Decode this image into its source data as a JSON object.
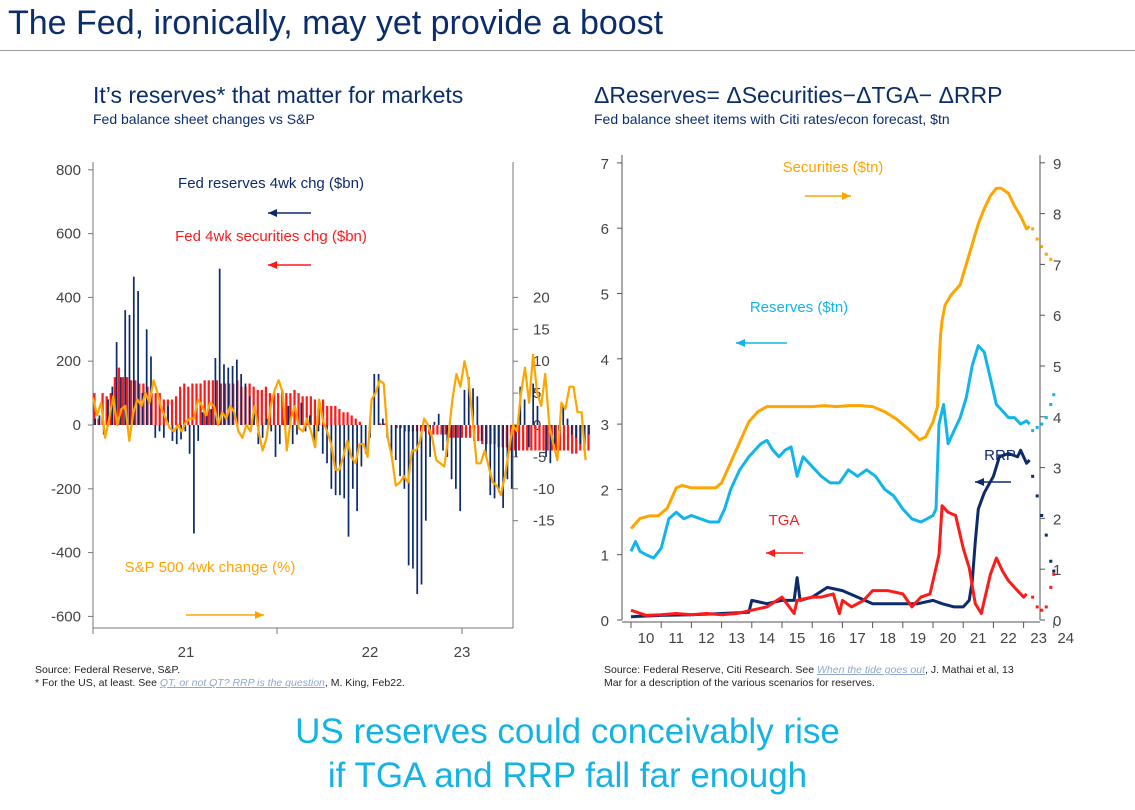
{
  "page": {
    "title": "The Fed, ironically, may yet provide a boost",
    "bottom_line1": "US reserves could conceivably rise",
    "bottom_line2": "if TGA and RRP fall far enough"
  },
  "left": {
    "title": "It’s reserves* that matter for markets",
    "subtitle": "Fed balance sheet changes vs S&P",
    "source_line1": "Source: Federal Reserve, S&P.",
    "source_pre": "* For the US, at least. See ",
    "source_link": "QT, or not QT? RRP is the question",
    "source_post": ", M. King, Feb22."
  },
  "right": {
    "title": "ΔReserves= ΔSecurities−ΔTGA− ΔRRP",
    "subtitle": "Fed balance sheet items with Citi rates/econ forecast, $tn",
    "source_pre": "Source: Federal Reserve, Citi Research. See ",
    "source_link": "When the tide goes out",
    "source_post": ", J. Mathai et al, 13",
    "source_line2": "Mar for a description of the various scenarios for reserves."
  },
  "colors": {
    "navy": "#0d2a6b",
    "red": "#ff1a1a",
    "orange": "#ffa500",
    "cyan": "#12b5ea",
    "title": "#0b2e6b"
  },
  "chart_data": [
    {
      "type": "bar",
      "title": "It’s reserves* that matter for markets",
      "subtitle": "Fed balance sheet changes vs S&P",
      "x_ticks": [
        "21",
        "22",
        "23"
      ],
      "y_left": {
        "min": -600,
        "max": 800,
        "ticks": [
          "800",
          "600",
          "400",
          "200",
          "0",
          "-200",
          "-400",
          "-600"
        ],
        "values": [
          800,
          600,
          400,
          200,
          0,
          -200,
          -400,
          -600
        ]
      },
      "y_right": {
        "min": -15,
        "max": 20,
        "ticks": [
          "20",
          "15",
          "10",
          "5",
          "0",
          "-5",
          "-10",
          "-15"
        ],
        "values": [
          20,
          15,
          10,
          5,
          0,
          -5,
          -10,
          -15
        ]
      },
      "x_range": [
        2020.5,
        2023.25
      ],
      "legend": [
        {
          "name": "Fed reserves 4wk chg ($bn)",
          "axis": "left",
          "color": "#0d2a6b"
        },
        {
          "name": "Fed 4wk securities chg ($bn)",
          "axis": "left",
          "color": "#ff1a1a"
        },
        {
          "name": "S&P 500 4wk change (%)",
          "axis": "right",
          "color": "#ffa500"
        }
      ],
      "series": [
        {
          "name": "Fed reserves 4wk chg ($bn)",
          "kind": "bar",
          "values": [
            20,
            30,
            -30,
            80,
            120,
            260,
            150,
            360,
            345,
            465,
            420,
            100,
            300,
            215,
            -40,
            -20,
            -40,
            60,
            -50,
            -60,
            -45,
            -20,
            -90,
            -340,
            -50,
            40,
            30,
            50,
            210,
            490,
            190,
            180,
            185,
            205,
            160,
            130,
            90,
            40,
            -60,
            -40,
            20,
            -20,
            -100,
            -60,
            20,
            60,
            -60,
            -30,
            70,
            -20,
            30,
            -50,
            -20,
            -90,
            -120,
            -200,
            -220,
            -220,
            -230,
            -350,
            -200,
            -270,
            -130,
            -90,
            -40,
            160,
            160,
            20,
            -40,
            -100,
            -110,
            -160,
            -200,
            -440,
            -450,
            -530,
            -500,
            -300,
            -100,
            10,
            35,
            -80,
            -100,
            -170,
            -200,
            -270,
            110,
            150,
            115,
            90,
            -50,
            -100,
            -220,
            -230,
            -200,
            -260,
            -170,
            -200,
            -100,
            120,
            80,
            -70,
            130,
            60,
            0,
            -100,
            -120,
            -60,
            -20,
            60,
            20,
            -30,
            -40,
            -60,
            -70,
            -30
          ],
          "x_start": 2020.5,
          "x_end": 2023.2
        },
        {
          "name": "Fed 4wk securities chg ($bn)",
          "kind": "bar",
          "values": [
            100,
            20,
            100,
            90,
            100,
            150,
            180,
            150,
            150,
            140,
            140,
            130,
            130,
            120,
            100,
            100,
            100,
            80,
            80,
            80,
            90,
            120,
            130,
            120,
            130,
            130,
            130,
            140,
            140,
            140,
            140,
            130,
            130,
            130,
            130,
            140,
            120,
            120,
            130,
            120,
            110,
            110,
            120,
            100,
            100,
            100,
            110,
            100,
            100,
            110,
            100,
            90,
            90,
            90,
            80,
            80,
            80,
            60,
            60,
            60,
            50,
            40,
            40,
            30,
            20,
            10,
            0,
            0,
            0,
            0,
            5,
            5,
            0,
            0,
            -10,
            -10,
            -20,
            -20,
            -20,
            -20,
            -20,
            -20,
            -30,
            -30,
            -30,
            -30,
            -30,
            -40,
            -40,
            -40,
            -40,
            -40,
            -40,
            -50,
            -50,
            -60,
            -60,
            -60,
            -60,
            -70,
            -70,
            -70,
            -80,
            -80,
            -80,
            -80,
            -80,
            -80,
            -80,
            -80,
            -80,
            -80,
            -80,
            -80,
            -80,
            -80,
            -80,
            -90,
            -90,
            -80,
            -80,
            -80
          ],
          "x_start": 2020.5,
          "x_end": 2023.2
        },
        {
          "name": "S&P 500 4wk change (%)",
          "kind": "line",
          "values": [
            4.3,
            1.5,
            3.5,
            -2,
            1,
            4.5,
            0,
            2.5,
            3,
            -2.5,
            2,
            4,
            3,
            5,
            3.5,
            7,
            5,
            2.5,
            1,
            -0.5,
            -1,
            0,
            -1,
            0.5,
            1,
            1,
            4,
            3,
            1.5,
            3.5,
            3,
            0,
            2,
            1,
            3,
            2,
            -1,
            -2,
            0,
            -1,
            3,
            -1,
            -4,
            -2,
            3,
            5.5,
            7,
            5,
            -4,
            1,
            3,
            -0.5,
            -1,
            1,
            -1,
            -3.5,
            4,
            0.5,
            -1,
            -3,
            -7,
            -7,
            -5,
            -2.5,
            -5,
            -6,
            -3,
            -3,
            -5,
            4,
            5,
            7,
            6.5,
            -2,
            -5,
            -9.5,
            -9,
            -8,
            -9,
            -4,
            -4,
            -2.5,
            1,
            0,
            -2,
            -5.5,
            -6,
            -6.5,
            -2,
            4,
            8,
            6,
            10,
            7,
            1,
            -6,
            -6,
            -4,
            -6.5,
            -9,
            -9.5,
            -11,
            -8,
            -4,
            0,
            -1,
            5,
            9,
            3.5,
            11,
            5,
            3,
            8,
            0,
            -3,
            -5.5,
            3.5,
            2.5,
            6,
            6,
            2,
            2,
            -5.5
          ],
          "x_start": 2020.5,
          "x_end": 2023.17
        }
      ]
    },
    {
      "type": "line",
      "title": "ΔReserves= ΔSecurities−ΔTGA− ΔRRP",
      "subtitle": "Fed balance sheet items with Citi rates/econ forecast, $tn",
      "x_ticks": [
        "10",
        "11",
        "12",
        "13",
        "14",
        "15",
        "16",
        "17",
        "18",
        "19",
        "20",
        "21",
        "22",
        "23",
        "24"
      ],
      "x_range": [
        2010,
        2025
      ],
      "y_left": {
        "min": 0,
        "max": 7,
        "ticks": [
          "7",
          "6",
          "5",
          "4",
          "3",
          "2",
          "1",
          "0"
        ],
        "values": [
          7,
          6,
          5,
          4,
          3,
          2,
          1,
          0
        ]
      },
      "y_right": {
        "min": 0,
        "max": 9,
        "ticks": [
          "9",
          "8",
          "7",
          "6",
          "5",
          "4",
          "3",
          "2",
          "1",
          "0"
        ],
        "values": [
          9,
          8,
          7,
          6,
          5,
          4,
          3,
          2,
          1,
          0
        ]
      },
      "legend": [
        {
          "name": "Securities ($tn)",
          "axis": "right",
          "color": "#ffa500"
        },
        {
          "name": "Reserves ($tn)",
          "axis": "left",
          "color": "#12b5ea"
        },
        {
          "name": "RRP",
          "axis": "left",
          "color": "#0d2a6b"
        },
        {
          "name": "TGA",
          "axis": "left",
          "color": "#ff1a1a"
        }
      ],
      "series": [
        {
          "name": "Securities ($tn)",
          "axis": "right",
          "x": [
            2010.0,
            2010.3,
            2010.6,
            2010.9,
            2011.2,
            2011.5,
            2011.7,
            2012.0,
            2012.4,
            2012.8,
            2013.0,
            2013.3,
            2013.6,
            2013.9,
            2014.2,
            2014.5,
            2014.8,
            2015.2,
            2015.6,
            2016.0,
            2016.4,
            2016.8,
            2017.2,
            2017.6,
            2018.0,
            2018.4,
            2018.8,
            2019.2,
            2019.55,
            2019.75,
            2020.0,
            2020.15,
            2020.2,
            2020.25,
            2020.3,
            2020.4,
            2020.6,
            2020.9,
            2021.1,
            2021.3,
            2021.5,
            2021.7,
            2021.9,
            2022.1,
            2022.25,
            2022.5,
            2022.7,
            2022.9,
            2023.1,
            2023.2
          ],
          "y": [
            1.8,
            2.0,
            2.05,
            2.05,
            2.2,
            2.6,
            2.65,
            2.6,
            2.6,
            2.6,
            2.7,
            3.1,
            3.5,
            3.9,
            4.1,
            4.2,
            4.2,
            4.2,
            4.2,
            4.2,
            4.22,
            4.2,
            4.22,
            4.22,
            4.2,
            4.1,
            3.95,
            3.75,
            3.55,
            3.6,
            3.9,
            4.2,
            5.0,
            5.6,
            5.9,
            6.2,
            6.4,
            6.6,
            7.0,
            7.4,
            7.8,
            8.1,
            8.35,
            8.5,
            8.5,
            8.4,
            8.15,
            7.95,
            7.7,
            7.75
          ],
          "forecast_x": [
            2023.3,
            2023.45,
            2023.6,
            2023.75,
            2023.9
          ],
          "forecast_y": [
            7.7,
            7.5,
            7.35,
            7.2,
            7.1
          ]
        },
        {
          "name": "Reserves ($tn)",
          "axis": "left",
          "x": [
            2010.0,
            2010.15,
            2010.3,
            2010.5,
            2010.75,
            2011.0,
            2011.25,
            2011.5,
            2011.75,
            2012.0,
            2012.3,
            2012.6,
            2012.9,
            2013.1,
            2013.3,
            2013.6,
            2013.9,
            2014.1,
            2014.3,
            2014.5,
            2014.7,
            2014.9,
            2015.1,
            2015.3,
            2015.5,
            2015.7,
            2015.9,
            2016.1,
            2016.3,
            2016.6,
            2016.9,
            2017.2,
            2017.5,
            2017.8,
            2018.1,
            2018.4,
            2018.7,
            2019.0,
            2019.3,
            2019.6,
            2019.8,
            2020.0,
            2020.1,
            2020.2,
            2020.35,
            2020.5,
            2020.7,
            2020.9,
            2021.1,
            2021.3,
            2021.5,
            2021.7,
            2021.9,
            2022.1,
            2022.3,
            2022.5,
            2022.7,
            2022.9,
            2023.1,
            2023.2
          ],
          "y": [
            1.05,
            1.2,
            1.05,
            1.0,
            0.95,
            1.1,
            1.55,
            1.65,
            1.55,
            1.6,
            1.55,
            1.5,
            1.5,
            1.7,
            2.0,
            2.3,
            2.5,
            2.6,
            2.7,
            2.75,
            2.6,
            2.5,
            2.6,
            2.65,
            2.2,
            2.5,
            2.4,
            2.3,
            2.2,
            2.1,
            2.1,
            2.3,
            2.2,
            2.3,
            2.2,
            2.0,
            1.9,
            1.7,
            1.55,
            1.5,
            1.55,
            1.6,
            1.7,
            3.0,
            3.3,
            2.7,
            2.9,
            3.1,
            3.4,
            3.9,
            4.2,
            4.1,
            3.7,
            3.3,
            3.2,
            3.1,
            3.1,
            3.0,
            3.05,
            3.0
          ],
          "forecast_x": [
            2023.3,
            2023.45,
            2023.6,
            2023.75,
            2023.9,
            2024.0
          ],
          "forecast_y": [
            2.9,
            2.95,
            3.0,
            3.1,
            3.3,
            3.45
          ]
        },
        {
          "name": "RRP",
          "axis": "left",
          "x": [
            2010.0,
            2011.0,
            2012.0,
            2013.0,
            2013.9,
            2014.0,
            2014.5,
            2015.0,
            2015.4,
            2015.5,
            2015.6,
            2016.0,
            2016.5,
            2017.0,
            2017.5,
            2018.0,
            2018.5,
            2019.0,
            2019.5,
            2020.0,
            2020.3,
            2020.7,
            2021.0,
            2021.2,
            2021.3,
            2021.4,
            2021.5,
            2021.7,
            2022.0,
            2022.2,
            2022.5,
            2022.8,
            2022.9,
            2023.1,
            2023.2
          ],
          "y": [
            0.05,
            0.07,
            0.08,
            0.1,
            0.12,
            0.3,
            0.25,
            0.3,
            0.3,
            0.65,
            0.3,
            0.35,
            0.5,
            0.45,
            0.35,
            0.25,
            0.25,
            0.25,
            0.25,
            0.3,
            0.25,
            0.2,
            0.2,
            0.3,
            0.6,
            1.2,
            1.7,
            1.95,
            2.2,
            2.5,
            2.55,
            2.5,
            2.6,
            2.4,
            2.45
          ],
          "forecast_x": [
            2023.3,
            2023.45,
            2023.6,
            2023.75,
            2023.9,
            2024.0
          ],
          "forecast_y": [
            2.2,
            1.9,
            1.6,
            1.3,
            0.9,
            0.75
          ]
        },
        {
          "name": "TGA",
          "axis": "left",
          "x": [
            2010.0,
            2010.5,
            2011.0,
            2011.5,
            2012.0,
            2012.5,
            2013.0,
            2013.5,
            2014.0,
            2014.5,
            2015.0,
            2015.4,
            2015.5,
            2016.0,
            2016.3,
            2016.7,
            2016.9,
            2017.0,
            2017.3,
            2017.7,
            2018.0,
            2018.5,
            2019.0,
            2019.3,
            2019.6,
            2019.9,
            2020.2,
            2020.3,
            2020.5,
            2020.75,
            2021.0,
            2021.2,
            2021.4,
            2021.6,
            2021.7,
            2021.9,
            2022.1,
            2022.3,
            2022.5,
            2022.7,
            2022.9,
            2023.0,
            2023.1
          ],
          "y": [
            0.15,
            0.07,
            0.08,
            0.1,
            0.08,
            0.1,
            0.08,
            0.1,
            0.15,
            0.2,
            0.35,
            0.1,
            0.3,
            0.35,
            0.35,
            0.4,
            0.1,
            0.3,
            0.2,
            0.3,
            0.45,
            0.45,
            0.4,
            0.2,
            0.35,
            0.4,
            1.0,
            1.75,
            1.65,
            1.6,
            1.1,
            0.8,
            0.25,
            0.1,
            0.3,
            0.7,
            0.95,
            0.75,
            0.6,
            0.5,
            0.4,
            0.35,
            0.4
          ],
          "forecast_x": [
            2023.3,
            2023.45,
            2023.6,
            2023.75,
            2023.9,
            2024.0
          ],
          "forecast_y": [
            0.35,
            0.2,
            0.15,
            0.2,
            0.5,
            0.7
          ]
        }
      ]
    }
  ]
}
